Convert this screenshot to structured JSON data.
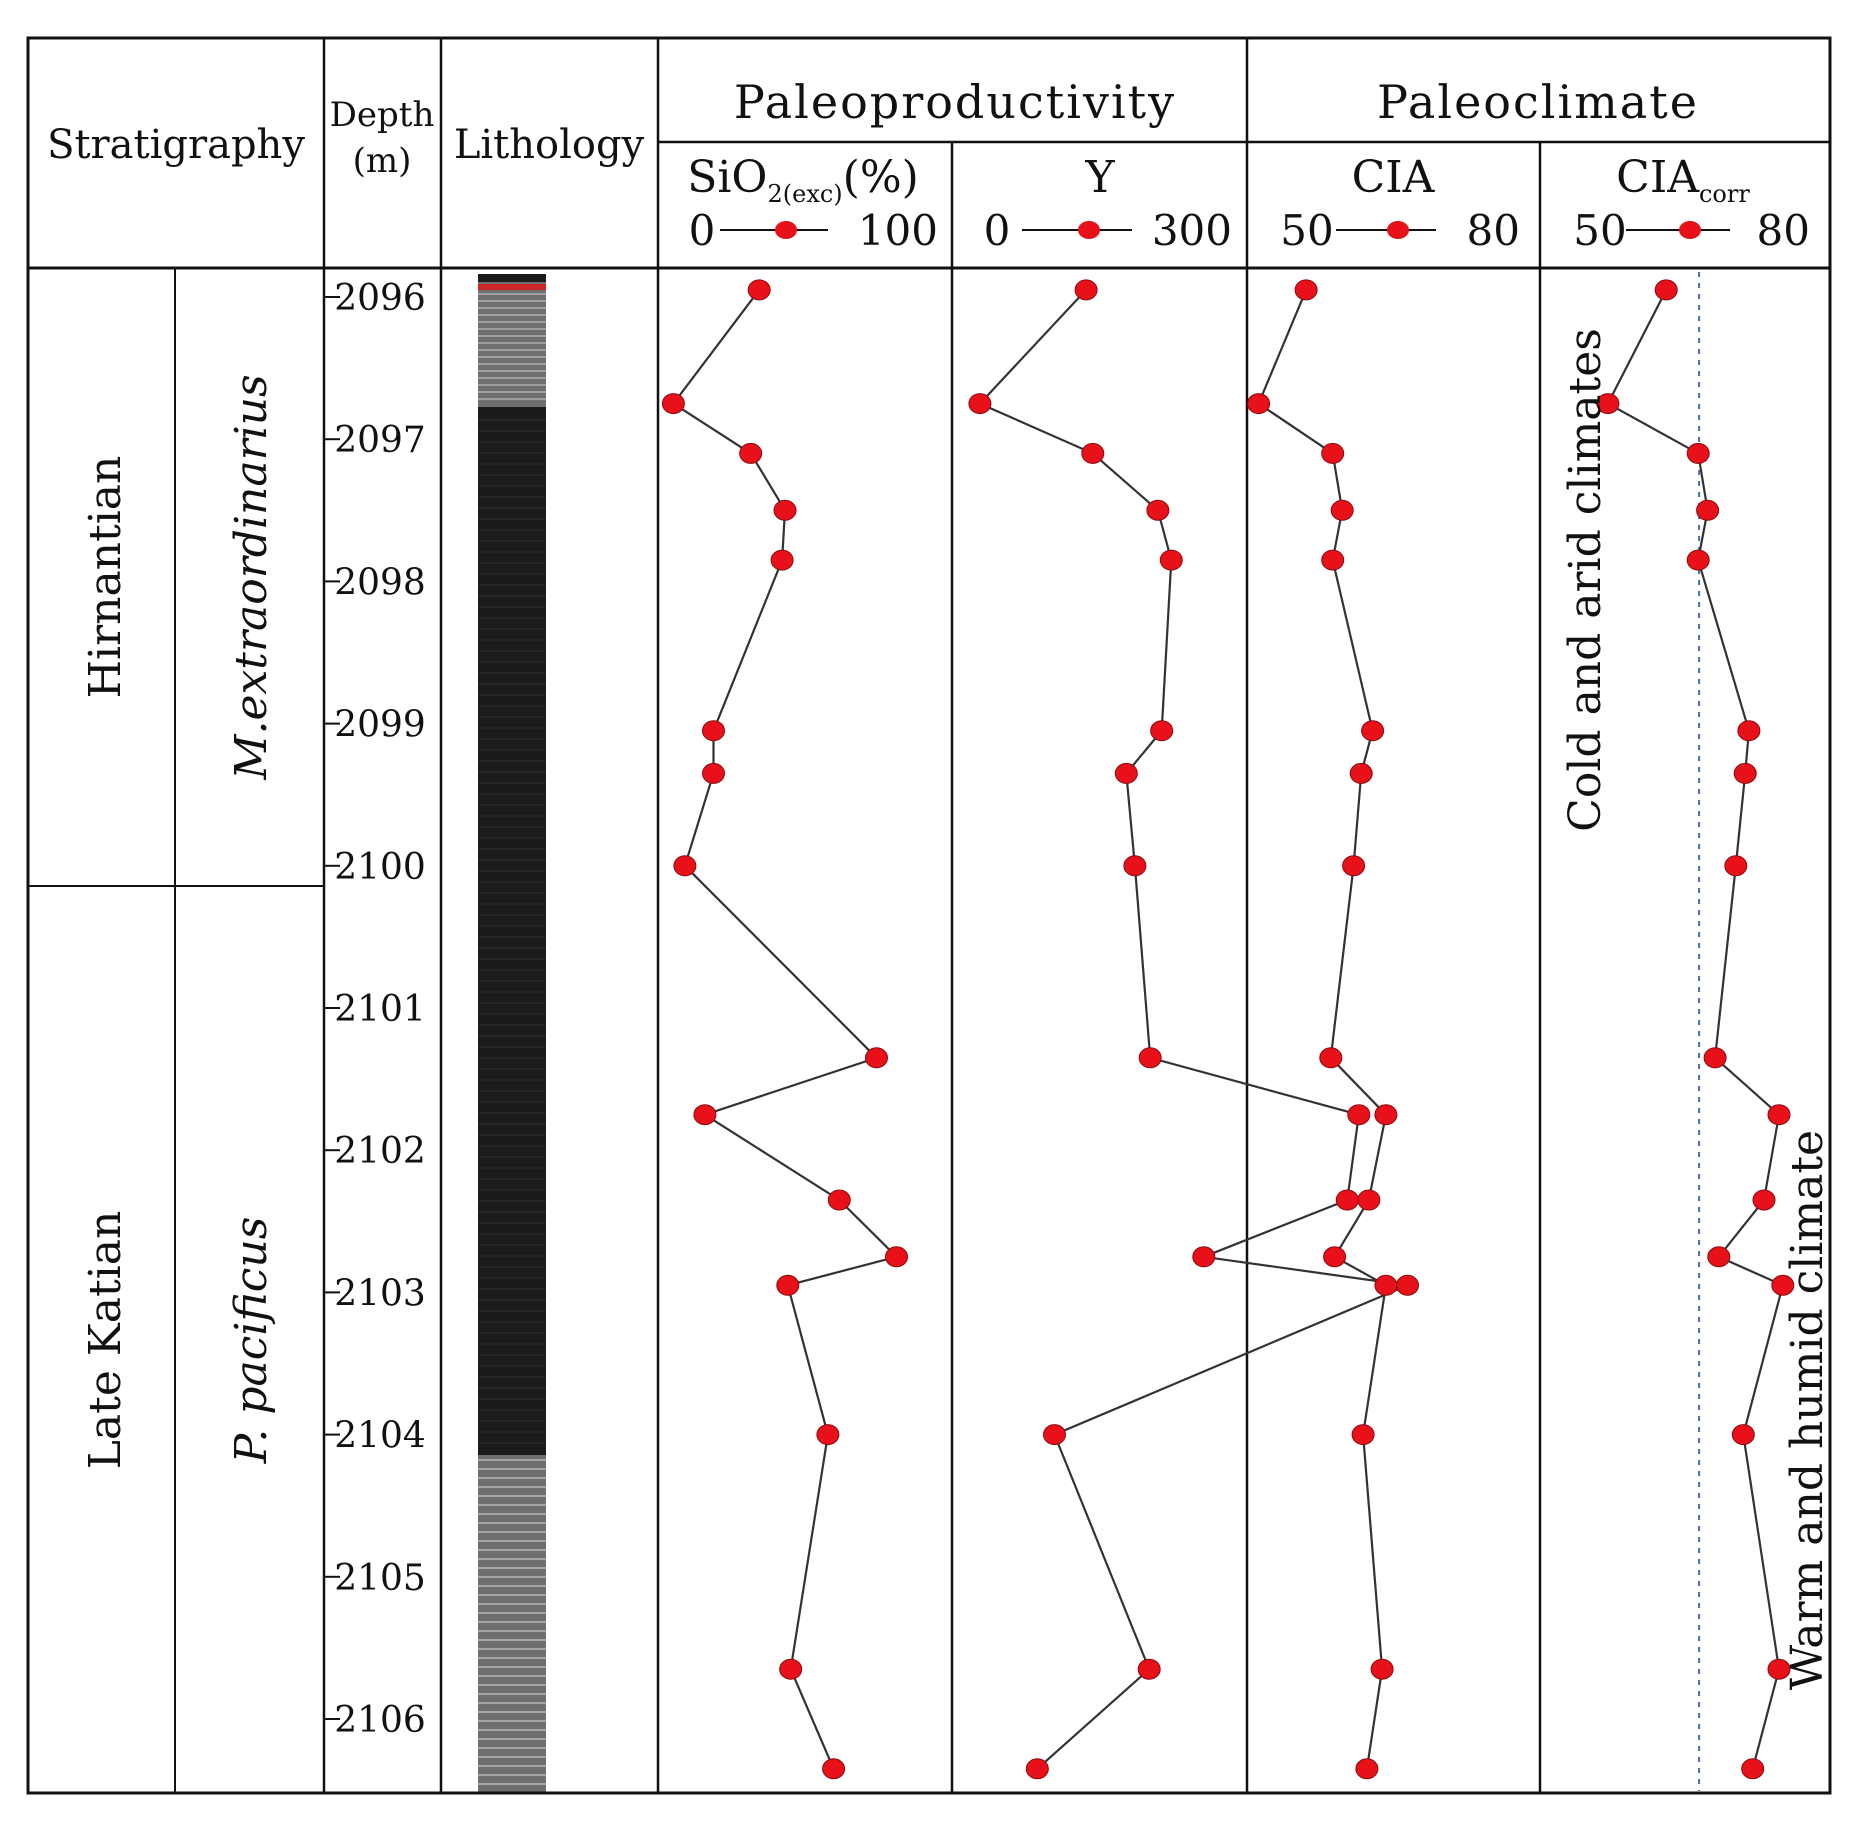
{
  "header": {
    "stratigraphy": "Stratigraphy",
    "depth_line1": "Depth",
    "depth_line2": "(m)",
    "lithology": "Lithology",
    "paleoproductivity": "Paleoproductivity",
    "paleoclimate": "Paleoclimate"
  },
  "stages": {
    "upper": "Hirnantian",
    "lower": "Late Katian"
  },
  "zones": {
    "upper": "M.extraordinarius",
    "lower": "P. pacificus"
  },
  "annotations": {
    "cold": "Cold and arid climates",
    "warm": "Warm and humid climate"
  },
  "colors": {
    "marker": "#e8111a",
    "line": "#333333",
    "frame": "#111111",
    "lith_dark": "#1b1b1b",
    "lith_gray": "#6f6f6f",
    "threshold": "#4a6fa5"
  },
  "chart_data": {
    "type": "line",
    "orientation": "depth-profile",
    "y_axis": {
      "label": "Depth (m)",
      "range": [
        2095.8,
        2106.5
      ],
      "ticks": [
        2096,
        2097,
        2098,
        2099,
        2100,
        2101,
        2102,
        2103,
        2104,
        2105,
        2106
      ],
      "tick_labels": [
        "2096",
        "2097",
        "2098",
        "2099",
        "2100",
        "2101",
        "2102",
        "2103",
        "2104",
        "2105",
        "2106"
      ]
    },
    "depths": [
      2095.95,
      2096.75,
      2097.1,
      2097.5,
      2097.85,
      2099.05,
      2099.35,
      2100.0,
      2101.35,
      2101.75,
      2102.35,
      2102.75,
      2102.95,
      2104.0,
      2105.65,
      2106.35
    ],
    "series": [
      {
        "name": "SiO2(exc)",
        "label_main": "SiO",
        "label_sub": "2(exc)",
        "label_tail": "(%)",
        "range": [
          0,
          100
        ],
        "range_labels": [
          "0",
          "100"
        ],
        "values": [
          34,
          4,
          31,
          43,
          42,
          18,
          18,
          8,
          75,
          15,
          62,
          82,
          44,
          58,
          45,
          60
        ]
      },
      {
        "name": "Y",
        "label_main": "Y",
        "label_sub": "",
        "label_tail": "",
        "range": [
          0,
          300
        ],
        "range_labels": [
          "0",
          "300"
        ],
        "values": [
          136,
          25,
          143,
          211,
          225,
          215,
          178,
          187,
          203,
          421,
          409,
          259,
          472,
          103,
          202,
          85
        ]
      },
      {
        "name": "CIA",
        "label_main": "CIA",
        "label_sub": "",
        "label_tail": "",
        "range": [
          50,
          80
        ],
        "range_labels": [
          "50",
          "80"
        ],
        "values": [
          55.8,
          50.8,
          58.6,
          59.6,
          58.6,
          62.8,
          61.6,
          60.8,
          58.4,
          64.2,
          62.4,
          58.8,
          64.2,
          61.8,
          63.8,
          62.2
        ]
      },
      {
        "name": "CIAcorr",
        "label_main": "CIA",
        "label_sub": "corr",
        "label_tail": "",
        "range": [
          50,
          80
        ],
        "range_labels": [
          "50",
          "80"
        ],
        "values": [
          63.0,
          56.8,
          66.4,
          67.4,
          66.4,
          71.8,
          71.4,
          70.4,
          68.2,
          75.0,
          73.4,
          68.6,
          75.4,
          71.2,
          75.0,
          72.2
        ]
      }
    ],
    "threshold_ciacorr": 66.5
  }
}
